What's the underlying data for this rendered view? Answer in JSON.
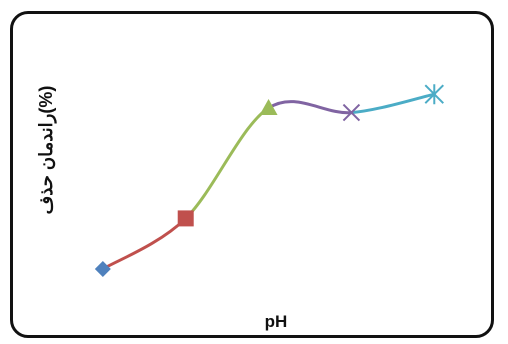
{
  "chart_data": {
    "type": "line",
    "title": "",
    "xlabel": "pH",
    "ylabel": "راندمان حذف(%)",
    "grid": false,
    "legend": "none",
    "smooth": true,
    "x": [
      1,
      2,
      3,
      4,
      5
    ],
    "y": [
      35,
      46,
      70,
      69,
      73
    ],
    "xlim": [
      0,
      5.6
    ],
    "ylim": [
      20,
      80
    ],
    "markers": [
      {
        "shape": "diamond",
        "color": "#4F81BD"
      },
      {
        "shape": "square",
        "color": "#C0504D"
      },
      {
        "shape": "triangle",
        "color": "#9BBB59"
      },
      {
        "shape": "x",
        "color": "#8064A2"
      },
      {
        "shape": "star",
        "color": "#4BACC6"
      }
    ],
    "segment_colors": [
      "#C0504D",
      "#9BBB59",
      "#8064A2",
      "#4BACC6"
    ]
  }
}
